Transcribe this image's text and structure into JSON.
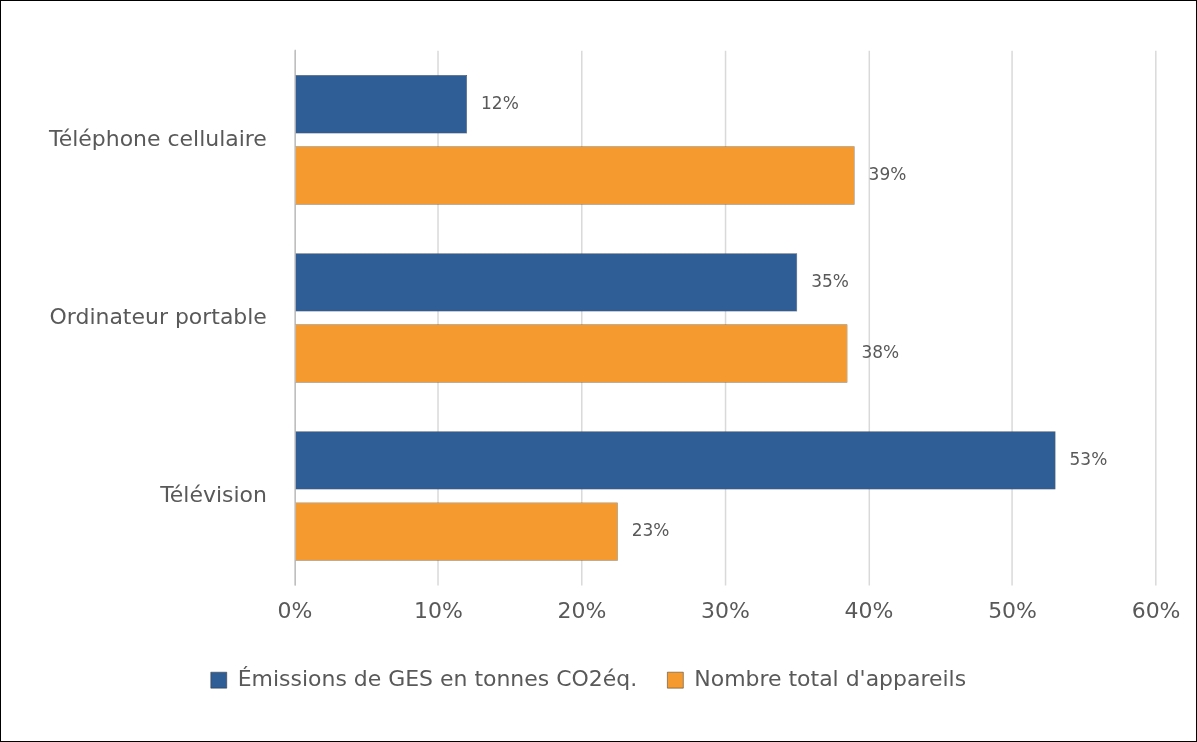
{
  "chart_data": {
    "type": "bar",
    "orientation": "horizontal",
    "categories": [
      "Téléphone cellulaire",
      "Ordinateur portable",
      "Télévision"
    ],
    "series": [
      {
        "name": "Émissions de GES en tonnes CO2éq.",
        "color": "#2f5d96",
        "values": [
          12,
          35,
          53
        ],
        "value_labels": [
          "12%",
          "35%",
          "53%"
        ]
      },
      {
        "name": "Nombre total d'appareils",
        "color": "#f59a2e",
        "values": [
          39,
          38.5,
          22.5
        ],
        "value_labels": [
          "39%",
          "38%",
          "23%"
        ]
      }
    ],
    "xlim": [
      0,
      60
    ],
    "xticks": [
      {
        "value": 0,
        "label": "0%"
      },
      {
        "value": 10,
        "label": "10%"
      },
      {
        "value": 20,
        "label": "20%"
      },
      {
        "value": 30,
        "label": "30%"
      },
      {
        "value": 40,
        "label": "40%"
      },
      {
        "value": 50,
        "label": "50%"
      },
      {
        "value": 60,
        "label": "60%"
      }
    ],
    "grid": "x",
    "legend": "bottom"
  }
}
